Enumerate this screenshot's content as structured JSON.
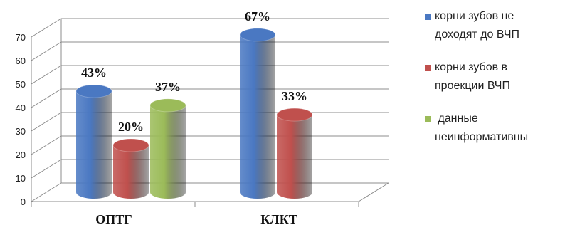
{
  "chart_data": {
    "type": "bar",
    "categories": [
      "ОПТГ",
      "КЛКТ"
    ],
    "series": [
      {
        "name": "корни зубов не доходят до ВЧП",
        "values": [
          43,
          67
        ],
        "labels": [
          "43%",
          "67%"
        ],
        "color": "#4a78c2"
      },
      {
        "name": "корни зубов в проекции ВЧП",
        "values": [
          20,
          33
        ],
        "labels": [
          "20%",
          "33%"
        ],
        "color": "#c0504d"
      },
      {
        "name": "данные неинформативны",
        "values": [
          37,
          null
        ],
        "labels": [
          "37%",
          ""
        ],
        "color": "#9bbb59"
      }
    ],
    "yticks": [
      "0",
      "10",
      "20",
      "30",
      "40",
      "50",
      "60",
      "70"
    ],
    "ylim": [
      0,
      70
    ],
    "grid": true,
    "legend_position": "right",
    "style": "3d-cylinder"
  },
  "legend": {
    "items": [
      {
        "line1": "корни зубов не",
        "line2": "доходят до ВЧП",
        "color": "#4a78c2"
      },
      {
        "line1": "корни зубов в",
        "line2": "проекции ВЧП",
        "color": "#c0504d"
      },
      {
        "line1": " данные",
        "line2": "неинформативны",
        "color": "#9bbb59"
      }
    ]
  }
}
